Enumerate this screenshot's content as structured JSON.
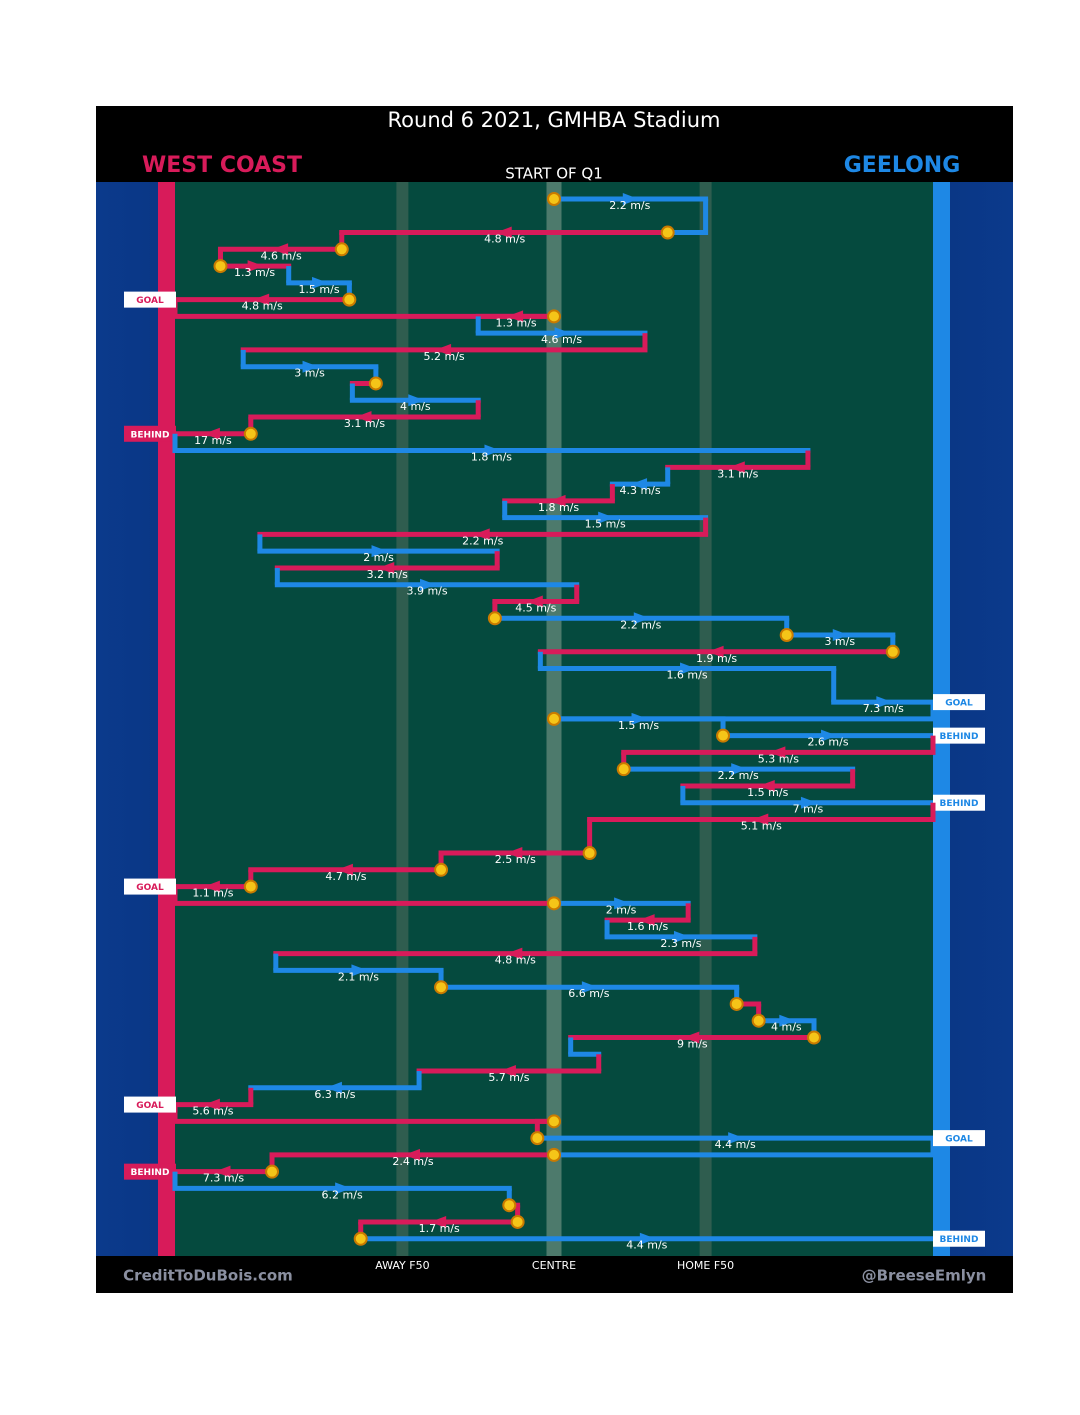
{
  "chart_data": {
    "type": "chain",
    "title": "Round 6 2021, GMHBA Stadium",
    "subtitle": "START OF Q1",
    "teams": [
      {
        "name": "WEST COAST",
        "color": "#d81b5a"
      },
      {
        "name": "GEELONG",
        "color": "#1e88e5"
      }
    ],
    "xlim": [
      0,
      100
    ],
    "xticks": [
      {
        "value": 30,
        "label": "AWAY F50"
      },
      {
        "value": 50,
        "label": "CENTRE"
      },
      {
        "value": 70,
        "label": "HOME F50"
      }
    ],
    "credit_left": "CreditToDuBois.com",
    "credit_right": "@BreeseEmlyn",
    "segments": [
      {
        "team": 1,
        "row": 0,
        "x0": 50,
        "x1": 70,
        "label": "2.2 m/s",
        "circle": true
      },
      {
        "team": 0,
        "row": 2,
        "x0": 65,
        "x1": 22,
        "label": "4.8 m/s",
        "circle": true
      },
      {
        "team": 0,
        "row": 3,
        "x0": 22,
        "x1": 6,
        "label": "4.6 m/s",
        "circle": true
      },
      {
        "team": 0,
        "row": 4,
        "x0": 6,
        "x1": 15,
        "label": "1.3 m/s",
        "circle": true
      },
      {
        "team": 1,
        "row": 5,
        "x0": 15,
        "x1": 23,
        "label": "1.5 m/s"
      },
      {
        "team": 0,
        "row": 6,
        "x0": 23,
        "x1": 0,
        "label": "4.8 m/s",
        "circle": true,
        "outcome": "GOAL"
      },
      {
        "team": 0,
        "row": 7,
        "x0": 50,
        "x1": 40,
        "label": "1.3 m/s",
        "circle": true
      },
      {
        "team": 1,
        "row": 8,
        "x0": 40,
        "x1": 62,
        "label": "4.6 m/s"
      },
      {
        "team": 0,
        "row": 9,
        "x0": 62,
        "x1": 9,
        "label": "5.2 m/s"
      },
      {
        "team": 1,
        "row": 10,
        "x0": 9,
        "x1": 26.5,
        "label": "3 m/s"
      },
      {
        "team": 0,
        "row": 11,
        "x0": 26.5,
        "x1": 23.4,
        "circle": true
      },
      {
        "team": 1,
        "row": 12,
        "x0": 23.4,
        "x1": 40,
        "label": "4 m/s"
      },
      {
        "team": 0,
        "row": 13,
        "x0": 40,
        "x1": 10,
        "label": "3.1 m/s"
      },
      {
        "team": 0,
        "row": 14,
        "x0": 10,
        "x1": 0,
        "label": "17 m/s",
        "circle": true,
        "outcome": "BEHIND"
      },
      {
        "team": 1,
        "row": 15,
        "x0": 0,
        "x1": 83.5,
        "label": "1.8 m/s"
      },
      {
        "team": 0,
        "row": 16,
        "x0": 83.5,
        "x1": 65,
        "label": "3.1 m/s"
      },
      {
        "team": 1,
        "row": 17,
        "x0": 65,
        "x1": 57.7,
        "label": "4.3 m/s"
      },
      {
        "team": 0,
        "row": 18,
        "x0": 57.7,
        "x1": 43.5,
        "label": "1.8 m/s"
      },
      {
        "team": 1,
        "row": 19,
        "x0": 43.5,
        "x1": 70,
        "label": "1.5 m/s"
      },
      {
        "team": 0,
        "row": 20,
        "x0": 70,
        "x1": 11.2,
        "label": "2.2 m/s"
      },
      {
        "team": 1,
        "row": 21,
        "x0": 11.2,
        "x1": 42.5,
        "label": "2 m/s"
      },
      {
        "team": 0,
        "row": 22,
        "x0": 42.5,
        "x1": 13.5,
        "label": "3.2 m/s"
      },
      {
        "team": 1,
        "row": 23,
        "x0": 13.5,
        "x1": 53,
        "label": "3.9 m/s"
      },
      {
        "team": 0,
        "row": 24,
        "x0": 53,
        "x1": 42.2,
        "label": "4.5 m/s"
      },
      {
        "team": 1,
        "row": 25,
        "x0": 42.2,
        "x1": 80.7,
        "label": "2.2 m/s",
        "circle": true
      },
      {
        "team": 1,
        "row": 26,
        "x0": 80.7,
        "x1": 94.7,
        "label": "3 m/s",
        "circle": true
      },
      {
        "team": 0,
        "row": 27,
        "x0": 94.7,
        "x1": 48.2,
        "label": "1.9 m/s",
        "circle": true
      },
      {
        "team": 1,
        "row": 28,
        "x0": 48.2,
        "x1": 86.9,
        "label": "1.6 m/s"
      },
      {
        "team": 1,
        "row": 30,
        "x0": 86.9,
        "x1": 100,
        "label": "7.3 m/s",
        "outcome": "GOAL"
      },
      {
        "team": 1,
        "row": 31,
        "x0": 50,
        "x1": 72.3,
        "label": "1.5 m/s",
        "circle": true
      },
      {
        "team": 1,
        "row": 32,
        "x0": 72.3,
        "x1": 100,
        "label": "2.6 m/s",
        "circle": true,
        "outcome": "BEHIND"
      },
      {
        "team": 0,
        "row": 33,
        "x0": 100,
        "x1": 59.2,
        "label": "5.3 m/s"
      },
      {
        "team": 1,
        "row": 34,
        "x0": 59.2,
        "x1": 89.4,
        "label": "2.2 m/s",
        "circle": true
      },
      {
        "team": 0,
        "row": 35,
        "x0": 89.4,
        "x1": 67,
        "label": "1.5 m/s"
      },
      {
        "team": 1,
        "row": 36,
        "x0": 67,
        "x1": 100,
        "label": "7 m/s",
        "outcome": "BEHIND"
      },
      {
        "team": 0,
        "row": 37,
        "x0": 100,
        "x1": 54.7,
        "label": "5.1 m/s"
      },
      {
        "team": 0,
        "row": 39,
        "x0": 54.7,
        "x1": 35.1,
        "label": "2.5 m/s",
        "circle": true
      },
      {
        "team": 0,
        "row": 40,
        "x0": 35.1,
        "x1": 10,
        "label": "4.7 m/s",
        "circle": true
      },
      {
        "team": 0,
        "row": 41,
        "x0": 10,
        "x1": 0,
        "label": "1.1 m/s",
        "circle": true,
        "outcome": "GOAL"
      },
      {
        "team": 1,
        "row": 42,
        "x0": 50,
        "x1": 67.7,
        "label": "2 m/s",
        "circle": true
      },
      {
        "team": 0,
        "row": 43,
        "x0": 67.7,
        "x1": 57,
        "label": "1.6 m/s"
      },
      {
        "team": 1,
        "row": 44,
        "x0": 57,
        "x1": 76.5,
        "label": "2.3 m/s"
      },
      {
        "team": 0,
        "row": 45,
        "x0": 76.5,
        "x1": 13.3,
        "label": "4.8 m/s"
      },
      {
        "team": 1,
        "row": 46,
        "x0": 13.3,
        "x1": 35.1,
        "label": "2.1 m/s"
      },
      {
        "team": 1,
        "row": 47,
        "x0": 35.1,
        "x1": 74.1,
        "label": "6.6 m/s",
        "circle": true
      },
      {
        "team": 0,
        "row": 48,
        "x0": 74.1,
        "x1": 77,
        "circle": true
      },
      {
        "team": 1,
        "row": 49,
        "x0": 77,
        "x1": 84.3,
        "label": "4 m/s",
        "circle": true
      },
      {
        "team": 0,
        "row": 50,
        "x0": 84.3,
        "x1": 52.2,
        "label": "9 m/s",
        "circle": true
      },
      {
        "team": 1,
        "row": 51,
        "x0": 52.2,
        "x1": 55.9
      },
      {
        "team": 0,
        "row": 52,
        "x0": 55.9,
        "x1": 32.2,
        "label": "5.7 m/s"
      },
      {
        "team": 1,
        "row": 53,
        "x0": 32.2,
        "x1": 10,
        "label": "6.3 m/s"
      },
      {
        "team": 0,
        "row": 54,
        "x0": 10,
        "x1": 0,
        "label": "5.6 m/s",
        "outcome": "GOAL"
      },
      {
        "team": 0,
        "row": 55,
        "x0": 50,
        "x1": 47.8,
        "circle": true
      },
      {
        "team": 1,
        "row": 56,
        "x0": 47.8,
        "x1": 100,
        "label": "4.4 m/s",
        "circle": true,
        "outcome": "GOAL"
      },
      {
        "team": 0,
        "row": 57,
        "x0": 50,
        "x1": 12.8,
        "label": "2.4 m/s",
        "circle": true
      },
      {
        "team": 0,
        "row": 58,
        "x0": 12.8,
        "x1": 0,
        "label": "7.3 m/s",
        "circle": true,
        "outcome": "BEHIND"
      },
      {
        "team": 1,
        "row": 59,
        "x0": 0,
        "x1": 44.1,
        "label": "6.2 m/s"
      },
      {
        "team": 0,
        "row": 60,
        "x0": 44.1,
        "x1": 45.2,
        "circle": true
      },
      {
        "team": 0,
        "row": 61,
        "x0": 45.2,
        "x1": 24.5,
        "label": "1.7 m/s",
        "circle": true
      },
      {
        "team": 1,
        "row": 62,
        "x0": 24.5,
        "x1": 100,
        "label": "4.4 m/s",
        "circle": true,
        "outcome": "BEHIND"
      }
    ]
  }
}
